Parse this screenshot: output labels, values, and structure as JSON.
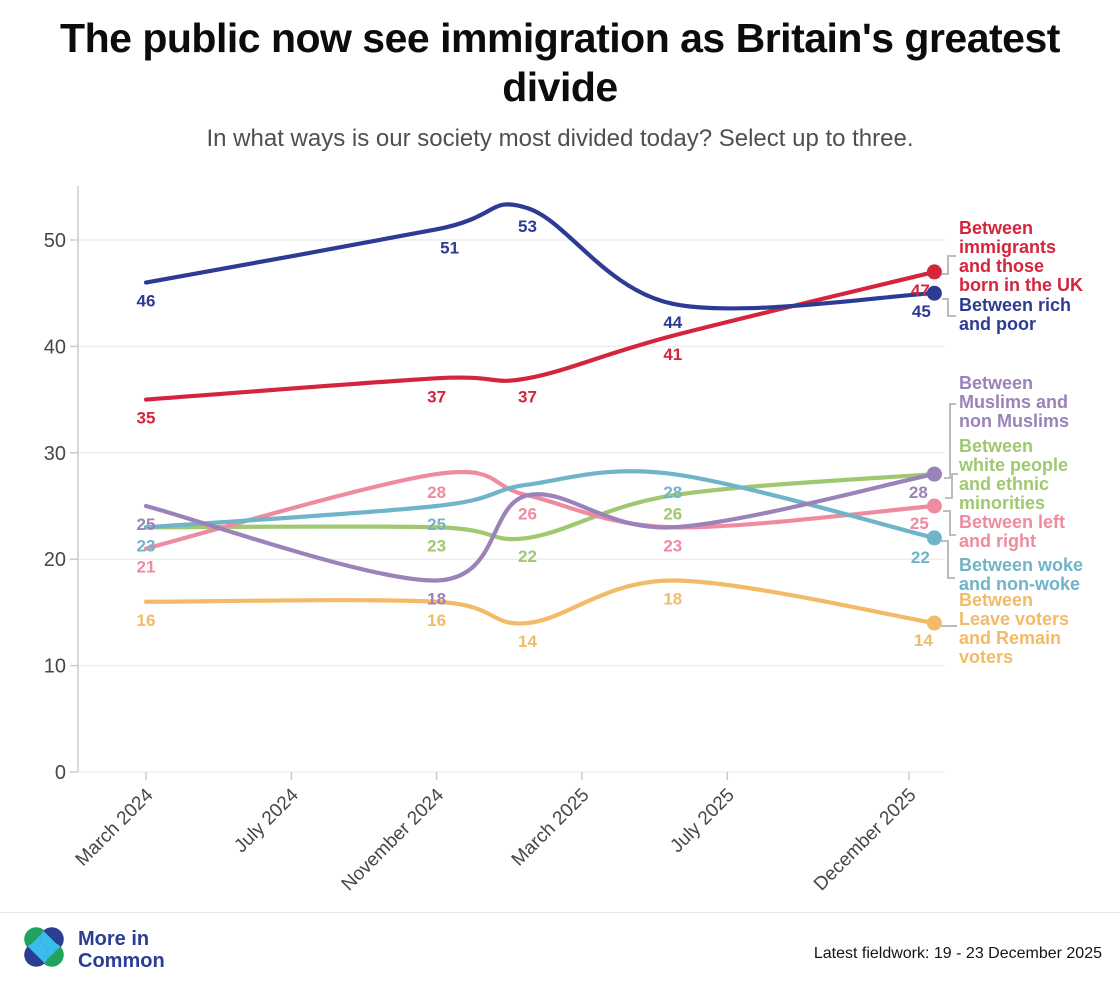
{
  "header": {
    "title": "The public now see immigration as Britain's greatest divide",
    "subtitle": "In what ways is our society most divided today? Select up to three."
  },
  "chart_data": {
    "type": "line",
    "title": "The public now see immigration as Britain's greatest divide",
    "xlabel": "",
    "ylabel": "",
    "grid": "horizontal",
    "legend_position": "right",
    "x_axis": {
      "unit": "months since March 2024",
      "ticks": [
        {
          "m": 0,
          "label": "March 2024"
        },
        {
          "m": 4,
          "label": "July 2024"
        },
        {
          "m": 8,
          "label": "November 2024"
        },
        {
          "m": 12,
          "label": "March 2025"
        },
        {
          "m": 16,
          "label": "July 2025"
        },
        {
          "m": 21,
          "label": "December 2025"
        }
      ]
    },
    "y_axis": {
      "ticks": [
        0,
        10,
        20,
        30,
        40,
        50
      ],
      "range": [
        0,
        55
      ]
    },
    "wave_months": [
      0,
      8,
      10.5,
      14.5,
      21.7
    ],
    "series": [
      {
        "id": "rich_poor",
        "name": "Between rich and poor",
        "legend_lines": [
          "Between rich",
          "and poor"
        ],
        "color": "#2e3b94",
        "values": [
          46,
          51,
          53,
          44,
          45
        ],
        "point_labels": [
          "46",
          "51",
          "53",
          "44",
          "45"
        ]
      },
      {
        "id": "immigrants",
        "name": "Between immigrants and those born in the UK",
        "legend_lines": [
          "Between",
          "immigrants",
          "and those",
          "born in the UK"
        ],
        "color": "#d4253d",
        "values": [
          35,
          37,
          37,
          41,
          47
        ],
        "point_labels": [
          "35",
          "37",
          "37",
          "41",
          "47"
        ]
      },
      {
        "id": "muslims",
        "name": "Between Muslims and non Muslims",
        "legend_lines": [
          "Between",
          "Muslims and",
          "non Muslims"
        ],
        "color": "#9b82b8",
        "values": [
          25,
          18,
          26,
          23,
          28
        ],
        "point_labels": [
          "25",
          "18",
          "",
          "",
          "28"
        ]
      },
      {
        "id": "white_ethnic",
        "name": "Between white people and ethnic minorities",
        "legend_lines": [
          "Between",
          "white people",
          "and ethnic",
          "minorities"
        ],
        "color": "#9fc870",
        "values": [
          23,
          23,
          22,
          26,
          28
        ],
        "point_labels": [
          "",
          "23",
          "22",
          "26",
          ""
        ]
      },
      {
        "id": "left_right",
        "name": "Between left and right",
        "legend_lines": [
          "Between left",
          "and right"
        ],
        "color": "#ef8ba0",
        "values": [
          21,
          28,
          26,
          23,
          25
        ],
        "point_labels": [
          "21",
          "28",
          "26",
          "23",
          "25"
        ]
      },
      {
        "id": "woke",
        "name": "Between woke and non-woke",
        "legend_lines": [
          "Between woke",
          "and non-woke"
        ],
        "color": "#6fb4c8",
        "values": [
          23,
          25,
          27,
          28,
          22
        ],
        "point_labels": [
          "23",
          "25",
          "",
          "28",
          "22"
        ]
      },
      {
        "id": "leave_remain",
        "name": "Between Leave voters and Remain voters",
        "legend_lines": [
          "Between",
          "Leave voters",
          "and Remain",
          "voters"
        ],
        "color": "#f3ba67",
        "values": [
          16,
          16,
          14,
          18,
          14
        ],
        "point_labels": [
          "16",
          "16",
          "14",
          "18",
          "14"
        ]
      }
    ]
  },
  "colors": {
    "grid": "#ededed",
    "axis": "#cccccc",
    "tick_text": "#474747",
    "connector": "#b5b5b5",
    "logo_green": "#1fa35f",
    "logo_navy": "#2b3e94",
    "logo_cyan": "#3cbcec"
  },
  "footer": {
    "brand_lines": [
      "More in",
      "Common"
    ],
    "fieldwork": "Latest fieldwork: 19 - 23 December 2025"
  }
}
